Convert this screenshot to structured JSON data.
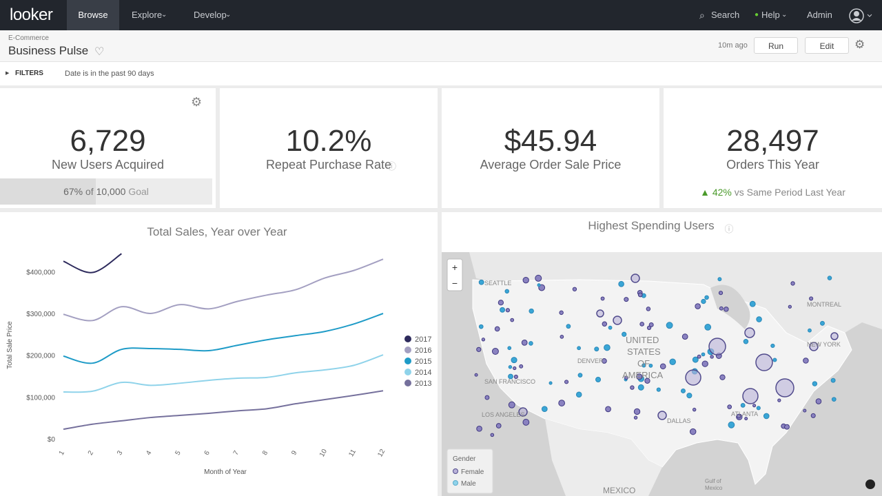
{
  "nav": {
    "logo": "looker",
    "items": [
      "Browse",
      "Explore",
      "Develop"
    ],
    "right": [
      "Search",
      "Help",
      "Admin"
    ]
  },
  "header": {
    "breadcrumb": "E-Commerce",
    "title": "Business Pulse",
    "updated": "10m ago",
    "buttons": [
      "Run",
      "Edit"
    ]
  },
  "filters": {
    "label": "FILTERS",
    "text": "Date is in the past 90 days"
  },
  "tiles": [
    {
      "value": "6,729",
      "label": "New Users Acquired",
      "progress": 67,
      "goal_parts": [
        "67%",
        "of",
        "10,000",
        "Goal"
      ]
    },
    {
      "value": "10.2%",
      "label": "Repeat Purchase Rate"
    },
    {
      "value": "$45.94",
      "label": "Average Order Sale Price"
    },
    {
      "value": "28,497",
      "label": "Orders This Year",
      "change": "42%",
      "change_text": "vs Same Period Last Year"
    }
  ],
  "chart_data": {
    "type": "line",
    "title": "Total Sales, Year over Year",
    "x_label": "Month of Year",
    "y_label": "Total Sale Price",
    "x": [
      1,
      2,
      3,
      4,
      5,
      6,
      7,
      8,
      9,
      10,
      11,
      12
    ],
    "xlim": [
      1,
      12
    ],
    "xticks": [
      1,
      2,
      3,
      4,
      5,
      6,
      7,
      8,
      9,
      10,
      11,
      12
    ],
    "ylim": [
      0,
      450000
    ],
    "yticks": [
      {
        "value": 0,
        "label": "$0"
      },
      {
        "value": 100000,
        "label": "$100,000"
      },
      {
        "value": 200000,
        "label": "$200,000"
      },
      {
        "value": 300000,
        "label": "$300,000"
      },
      {
        "value": 400000,
        "label": "$400,000"
      }
    ],
    "series": [
      {
        "name": "2017",
        "color": "#2d2a5c",
        "values": [
          425000,
          398000,
          443000,
          null,
          null,
          null,
          null,
          null,
          null,
          null,
          null,
          null
        ]
      },
      {
        "name": "2016",
        "color": "#a39fc1",
        "values": [
          298000,
          283000,
          316000,
          300000,
          321000,
          311000,
          329000,
          344000,
          357000,
          385000,
          403000,
          430000
        ]
      },
      {
        "name": "2015",
        "color": "#1e9bc7",
        "values": [
          198000,
          181000,
          214000,
          216000,
          214000,
          211000,
          224000,
          237000,
          247000,
          257000,
          275000,
          300000
        ]
      },
      {
        "name": "2014",
        "color": "#8fd3ea",
        "values": [
          112000,
          114000,
          135000,
          128000,
          133000,
          140000,
          145000,
          147000,
          158000,
          165000,
          176000,
          201000
        ]
      },
      {
        "name": "2013",
        "color": "#75709c",
        "values": [
          23000,
          35000,
          43000,
          51000,
          56000,
          61000,
          67000,
          72000,
          84000,
          94000,
          104000,
          115000
        ]
      }
    ]
  },
  "map": {
    "title": "Highest Spending Users",
    "places": [
      "SEATTLE",
      "MONTREAL",
      "UNITED",
      "STATES",
      "OF",
      "AMERICA",
      "DENVER",
      "SAN FRANCISCO",
      "LOS ANGELES",
      "DALLAS",
      "ATLANTA",
      "NEW YORK",
      "MEXICO",
      "Gulf of",
      "Mexico"
    ],
    "zoom": [
      "+",
      "−"
    ],
    "legend_title": "Gender",
    "legend": [
      "Female",
      "Male"
    ]
  }
}
